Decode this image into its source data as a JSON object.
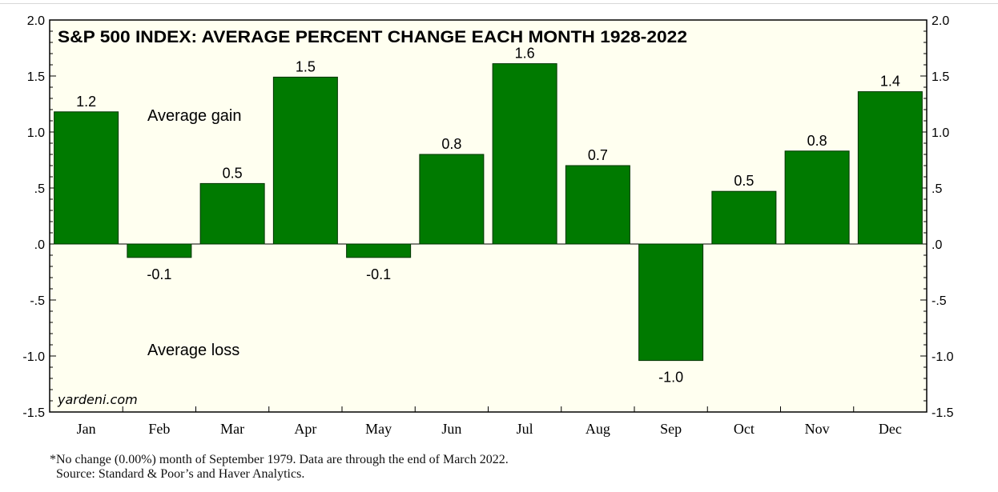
{
  "chart_data": {
    "type": "bar",
    "title": "S&P 500 INDEX: AVERAGE PERCENT CHANGE EACH MONTH 1928-2022",
    "categories": [
      "Jan",
      "Feb",
      "Mar",
      "Apr",
      "May",
      "Jun",
      "Jul",
      "Aug",
      "Sep",
      "Oct",
      "Nov",
      "Dec"
    ],
    "values": [
      1.18,
      -0.12,
      0.54,
      1.49,
      -0.12,
      0.8,
      1.61,
      0.7,
      -1.04,
      0.47,
      0.83,
      1.36
    ],
    "data_labels": [
      "1.2",
      "-0.1",
      "0.5",
      "1.5",
      "-0.1",
      "0.8",
      "1.6",
      "0.7",
      "-1.0",
      "0.5",
      "0.8",
      "1.4"
    ],
    "ylim": [
      -1.5,
      2.0
    ],
    "yticks": [
      2.0,
      1.5,
      1.0,
      0.5,
      0.0,
      -0.5,
      -1.0,
      -1.5
    ],
    "ytick_labels": [
      "2.0",
      "1.5",
      "1.0",
      ".5",
      ".0",
      "-.5",
      "-1.0",
      "-1.5"
    ],
    "annotations": {
      "gain": "Average gain",
      "loss": "Average loss",
      "brand": "yardeni.com"
    },
    "colors": {
      "bar": "#007a00",
      "bar_stroke": "#003300",
      "plot_bg": "#fffff0"
    },
    "grid": false,
    "legend": "none"
  },
  "footnote": {
    "line1": "*No change (0.00%) month of September 1979. Data are through the end of March 2022.",
    "line2": "Source: Standard & Poor’s and Haver Analytics."
  }
}
